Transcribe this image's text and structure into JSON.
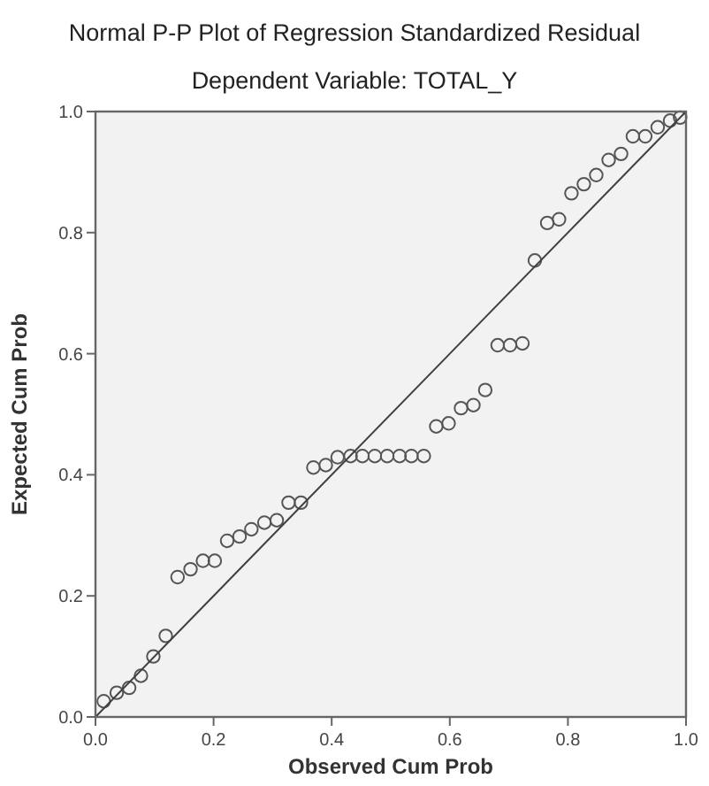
{
  "chart_data": {
    "type": "scatter",
    "title": "Normal P-P Plot of Regression Standardized Residual",
    "subtitle": "Dependent Variable: TOTAL_Y",
    "xlabel": "Observed Cum Prob",
    "ylabel": "Expected Cum Prob",
    "xlim": [
      0,
      1
    ],
    "ylim": [
      0,
      1
    ],
    "xticks": [
      {
        "value": 0,
        "label": "0.0"
      },
      {
        "value": 0.2,
        "label": "0.2"
      },
      {
        "value": 0.4,
        "label": "0.4"
      },
      {
        "value": 0.6,
        "label": "0.6"
      },
      {
        "value": 0.8,
        "label": "0.8"
      },
      {
        "value": 1,
        "label": "1.0"
      }
    ],
    "yticks": [
      {
        "value": 0,
        "label": "0.0"
      },
      {
        "value": 0.2,
        "label": "0.2"
      },
      {
        "value": 0.4,
        "label": "0.4"
      },
      {
        "value": 0.6,
        "label": "0.6"
      },
      {
        "value": 0.8,
        "label": "0.8"
      },
      {
        "value": 1,
        "label": "1.0"
      }
    ],
    "grid": false,
    "marker": "circle",
    "series": [
      {
        "type": "scatter",
        "color": "#555555",
        "x": [
          0.014,
          0.036,
          0.057,
          0.077,
          0.098,
          0.119,
          0.139,
          0.161,
          0.182,
          0.202,
          0.223,
          0.244,
          0.264,
          0.286,
          0.307,
          0.327,
          0.348,
          0.369,
          0.39,
          0.41,
          0.432,
          0.452,
          0.473,
          0.494,
          0.515,
          0.535,
          0.556,
          0.577,
          0.598,
          0.619,
          0.64,
          0.66,
          0.681,
          0.702,
          0.723,
          0.744,
          0.765,
          0.785,
          0.806,
          0.827,
          0.848,
          0.869,
          0.89,
          0.91,
          0.931,
          0.952,
          0.973,
          0.99
        ],
        "values": [
          0.026,
          0.04,
          0.048,
          0.068,
          0.1,
          0.134,
          0.231,
          0.244,
          0.258,
          0.258,
          0.291,
          0.298,
          0.31,
          0.321,
          0.325,
          0.354,
          0.354,
          0.412,
          0.416,
          0.429,
          0.431,
          0.431,
          0.431,
          0.431,
          0.431,
          0.431,
          0.431,
          0.48,
          0.485,
          0.51,
          0.515,
          0.54,
          0.614,
          0.614,
          0.617,
          0.754,
          0.816,
          0.822,
          0.865,
          0.88,
          0.895,
          0.92,
          0.93,
          0.959,
          0.959,
          0.974,
          0.985,
          0.99
        ]
      },
      {
        "type": "line",
        "color": "#404040",
        "marker": "none",
        "line_style": "solid",
        "x": [
          0,
          1
        ],
        "values": [
          0,
          1
        ]
      }
    ]
  }
}
